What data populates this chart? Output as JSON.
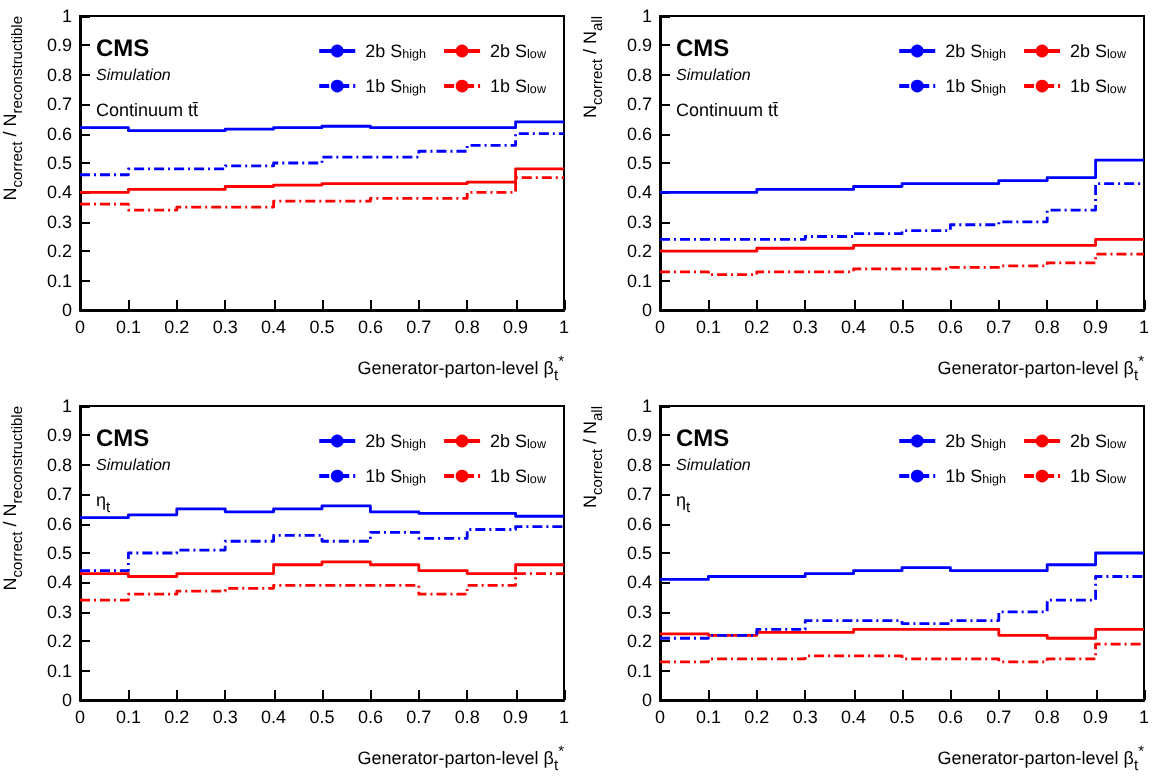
{
  "chart_data": [
    {
      "type": "step",
      "xlabel": "Generator-parton-level β$_{t}$$^{*}$",
      "ylabel": "N$_{correct}$ / N$_{reconstructible}$",
      "annotations": [
        "CMS",
        "Simulation",
        "Continuum tt̄"
      ],
      "x": [
        0,
        0.1,
        0.2,
        0.3,
        0.4,
        0.5,
        0.6,
        0.7,
        0.8,
        0.9,
        1
      ],
      "xlim": [
        0,
        1
      ],
      "ylim": [
        0,
        1
      ],
      "xticks": [
        0,
        0.1,
        0.2,
        0.3,
        0.4,
        0.5,
        0.6,
        0.7,
        0.8,
        0.9,
        1
      ],
      "yticks": [
        0,
        0.1,
        0.2,
        0.3,
        0.4,
        0.5,
        0.6,
        0.7,
        0.8,
        0.9,
        1
      ],
      "grid": false,
      "legend": "top right",
      "marker": "none",
      "series": [
        {
          "name": "2b S$_{high}$",
          "color": "#0000ff",
          "line_style": "solid",
          "values": [
            0.62,
            0.61,
            0.61,
            0.615,
            0.62,
            0.625,
            0.62,
            0.62,
            0.62,
            0.64,
            0.64
          ]
        },
        {
          "name": "2b S$_{low}$",
          "color": "#ff0000",
          "line_style": "solid",
          "values": [
            0.4,
            0.41,
            0.41,
            0.42,
            0.425,
            0.43,
            0.43,
            0.43,
            0.435,
            0.48,
            0.48
          ]
        },
        {
          "name": "1b S$_{high}$",
          "color": "#0000ff",
          "line_style": "dashed",
          "values": [
            0.46,
            0.48,
            0.48,
            0.49,
            0.5,
            0.52,
            0.52,
            0.54,
            0.56,
            0.6,
            0.6
          ]
        },
        {
          "name": "1b S$_{low}$",
          "color": "#ff0000",
          "line_style": "dashed",
          "values": [
            0.36,
            0.34,
            0.35,
            0.35,
            0.37,
            0.37,
            0.38,
            0.38,
            0.4,
            0.45,
            0.45
          ]
        }
      ]
    },
    {
      "type": "step",
      "xlabel": "Generator-parton-level β$_{t}$$^{*}$",
      "ylabel": "N$_{correct}$ / N$_{all}$",
      "annotations": [
        "CMS",
        "Simulation",
        "Continuum tt̄"
      ],
      "x": [
        0,
        0.1,
        0.2,
        0.3,
        0.4,
        0.5,
        0.6,
        0.7,
        0.8,
        0.9,
        1
      ],
      "xlim": [
        0,
        1
      ],
      "ylim": [
        0,
        1
      ],
      "xticks": [
        0,
        0.1,
        0.2,
        0.3,
        0.4,
        0.5,
        0.6,
        0.7,
        0.8,
        0.9,
        1
      ],
      "yticks": [
        0,
        0.1,
        0.2,
        0.3,
        0.4,
        0.5,
        0.6,
        0.7,
        0.8,
        0.9,
        1
      ],
      "grid": false,
      "legend": "top right",
      "marker": "none",
      "series": [
        {
          "name": "2b S$_{high}$",
          "color": "#0000ff",
          "line_style": "solid",
          "values": [
            0.4,
            0.4,
            0.41,
            0.41,
            0.42,
            0.43,
            0.43,
            0.44,
            0.45,
            0.51,
            0.51
          ]
        },
        {
          "name": "2b S$_{low}$",
          "color": "#ff0000",
          "line_style": "solid",
          "values": [
            0.2,
            0.2,
            0.21,
            0.21,
            0.22,
            0.22,
            0.22,
            0.22,
            0.22,
            0.24,
            0.24
          ]
        },
        {
          "name": "1b S$_{high}$",
          "color": "#0000ff",
          "line_style": "dashed",
          "values": [
            0.24,
            0.24,
            0.24,
            0.25,
            0.26,
            0.27,
            0.29,
            0.3,
            0.34,
            0.43,
            0.43
          ]
        },
        {
          "name": "1b S$_{low}$",
          "color": "#ff0000",
          "line_style": "dashed",
          "values": [
            0.13,
            0.12,
            0.13,
            0.13,
            0.14,
            0.14,
            0.145,
            0.15,
            0.16,
            0.19,
            0.19
          ]
        }
      ]
    },
    {
      "type": "step",
      "xlabel": "Generator-parton-level β$_{t}$$^{*}$",
      "ylabel": "N$_{correct}$ / N$_{reconstructible}$",
      "annotations": [
        "CMS",
        "Simulation",
        "η$_{t}$"
      ],
      "x": [
        0,
        0.1,
        0.2,
        0.3,
        0.4,
        0.5,
        0.6,
        0.7,
        0.8,
        0.9,
        1
      ],
      "xlim": [
        0,
        1
      ],
      "ylim": [
        0,
        1
      ],
      "xticks": [
        0,
        0.1,
        0.2,
        0.3,
        0.4,
        0.5,
        0.6,
        0.7,
        0.8,
        0.9,
        1
      ],
      "yticks": [
        0,
        0.1,
        0.2,
        0.3,
        0.4,
        0.5,
        0.6,
        0.7,
        0.8,
        0.9,
        1
      ],
      "grid": false,
      "legend": "top right",
      "marker": "none",
      "series": [
        {
          "name": "2b S$_{high}$",
          "color": "#0000ff",
          "line_style": "solid",
          "values": [
            0.62,
            0.63,
            0.65,
            0.64,
            0.65,
            0.66,
            0.64,
            0.635,
            0.635,
            0.625,
            0.625
          ]
        },
        {
          "name": "2b S$_{low}$",
          "color": "#ff0000",
          "line_style": "solid",
          "values": [
            0.43,
            0.42,
            0.43,
            0.43,
            0.46,
            0.47,
            0.46,
            0.44,
            0.43,
            0.46,
            0.46
          ]
        },
        {
          "name": "1b S$_{high}$",
          "color": "#0000ff",
          "line_style": "dashed",
          "values": [
            0.44,
            0.5,
            0.51,
            0.54,
            0.56,
            0.54,
            0.57,
            0.55,
            0.58,
            0.59,
            0.59
          ]
        },
        {
          "name": "1b S$_{low}$",
          "color": "#ff0000",
          "line_style": "dashed",
          "values": [
            0.34,
            0.36,
            0.37,
            0.38,
            0.39,
            0.39,
            0.39,
            0.36,
            0.39,
            0.43,
            0.43
          ]
        }
      ]
    },
    {
      "type": "step",
      "xlabel": "Generator-parton-level β$_{t}$$^{*}$",
      "ylabel": "N$_{correct}$ / N$_{all}$",
      "annotations": [
        "CMS",
        "Simulation",
        "η$_{t}$"
      ],
      "x": [
        0,
        0.1,
        0.2,
        0.3,
        0.4,
        0.5,
        0.6,
        0.7,
        0.8,
        0.9,
        1
      ],
      "xlim": [
        0,
        1
      ],
      "ylim": [
        0,
        1
      ],
      "xticks": [
        0,
        0.1,
        0.2,
        0.3,
        0.4,
        0.5,
        0.6,
        0.7,
        0.8,
        0.9,
        1
      ],
      "yticks": [
        0,
        0.1,
        0.2,
        0.3,
        0.4,
        0.5,
        0.6,
        0.7,
        0.8,
        0.9,
        1
      ],
      "grid": false,
      "legend": "top right",
      "marker": "none",
      "series": [
        {
          "name": "2b S$_{high}$",
          "color": "#0000ff",
          "line_style": "solid",
          "values": [
            0.41,
            0.42,
            0.42,
            0.43,
            0.44,
            0.45,
            0.44,
            0.44,
            0.46,
            0.5,
            0.5
          ]
        },
        {
          "name": "2b S$_{low}$",
          "color": "#ff0000",
          "line_style": "solid",
          "values": [
            0.225,
            0.22,
            0.23,
            0.23,
            0.24,
            0.24,
            0.24,
            0.22,
            0.21,
            0.24,
            0.24
          ]
        },
        {
          "name": "1b S$_{high}$",
          "color": "#0000ff",
          "line_style": "dashed",
          "values": [
            0.21,
            0.22,
            0.24,
            0.27,
            0.27,
            0.26,
            0.27,
            0.3,
            0.34,
            0.42,
            0.42
          ]
        },
        {
          "name": "1b S$_{low}$",
          "color": "#ff0000",
          "line_style": "dashed",
          "values": [
            0.13,
            0.14,
            0.14,
            0.15,
            0.15,
            0.14,
            0.14,
            0.13,
            0.14,
            0.19,
            0.19
          ]
        }
      ]
    }
  ]
}
